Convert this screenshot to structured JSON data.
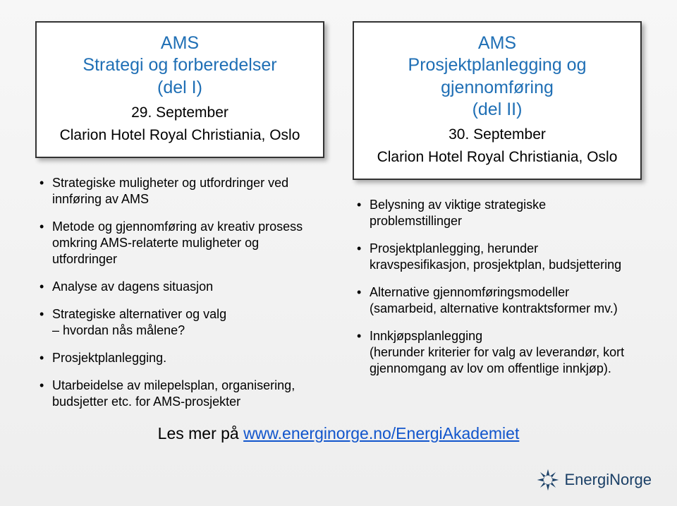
{
  "left": {
    "card": {
      "title_line1": "AMS",
      "title_line2": "Strategi og forberedelser",
      "title_line3": "(del I)",
      "date": "29. September",
      "venue": "Clarion Hotel Royal Christiania, Oslo"
    },
    "bullets": [
      "Strategiske muligheter og utfordringer ved innføring av AMS",
      "Metode og gjennomføring av kreativ prosess omkring AMS-relaterte muligheter og utfordringer",
      "Analyse av dagens situasjon",
      "Strategiske alternativer og valg\n– hvordan nås målene?",
      "Prosjektplanlegging.",
      "Utarbeidelse av milepelsplan, organisering, budsjetter etc. for AMS-prosjekter"
    ]
  },
  "right": {
    "card": {
      "title_line1": "AMS",
      "title_line2": "Prosjektplanlegging og gjennomføring",
      "title_line3": "(del II)",
      "date": "30. September",
      "venue": "Clarion Hotel Royal Christiania, Oslo"
    },
    "bullets": [
      "Belysning av viktige strategiske problemstillinger",
      "Prosjektplanlegging, herunder kravspesifikasjon, prosjektplan, budsjettering",
      "Alternative gjennomføringsmodeller\n(samarbeid, alternative kontraktsformer mv.)",
      "Innkjøpsplanlegging\n(herunder kriterier for valg av leverandør, kort gjennomgang av lov om offentlige innkjøp)."
    ]
  },
  "footer": {
    "prefix": "Les mer på ",
    "link_text": "www.energinorge.no/EnergiAkademiet",
    "brand": "EnergiNorge"
  },
  "colors": {
    "title_blue": "#1f6fb5",
    "text": "#000000",
    "link": "#1155cc",
    "brand_navy": "#1a3f66",
    "card_bg": "#ffffff",
    "card_border": "#333333"
  }
}
